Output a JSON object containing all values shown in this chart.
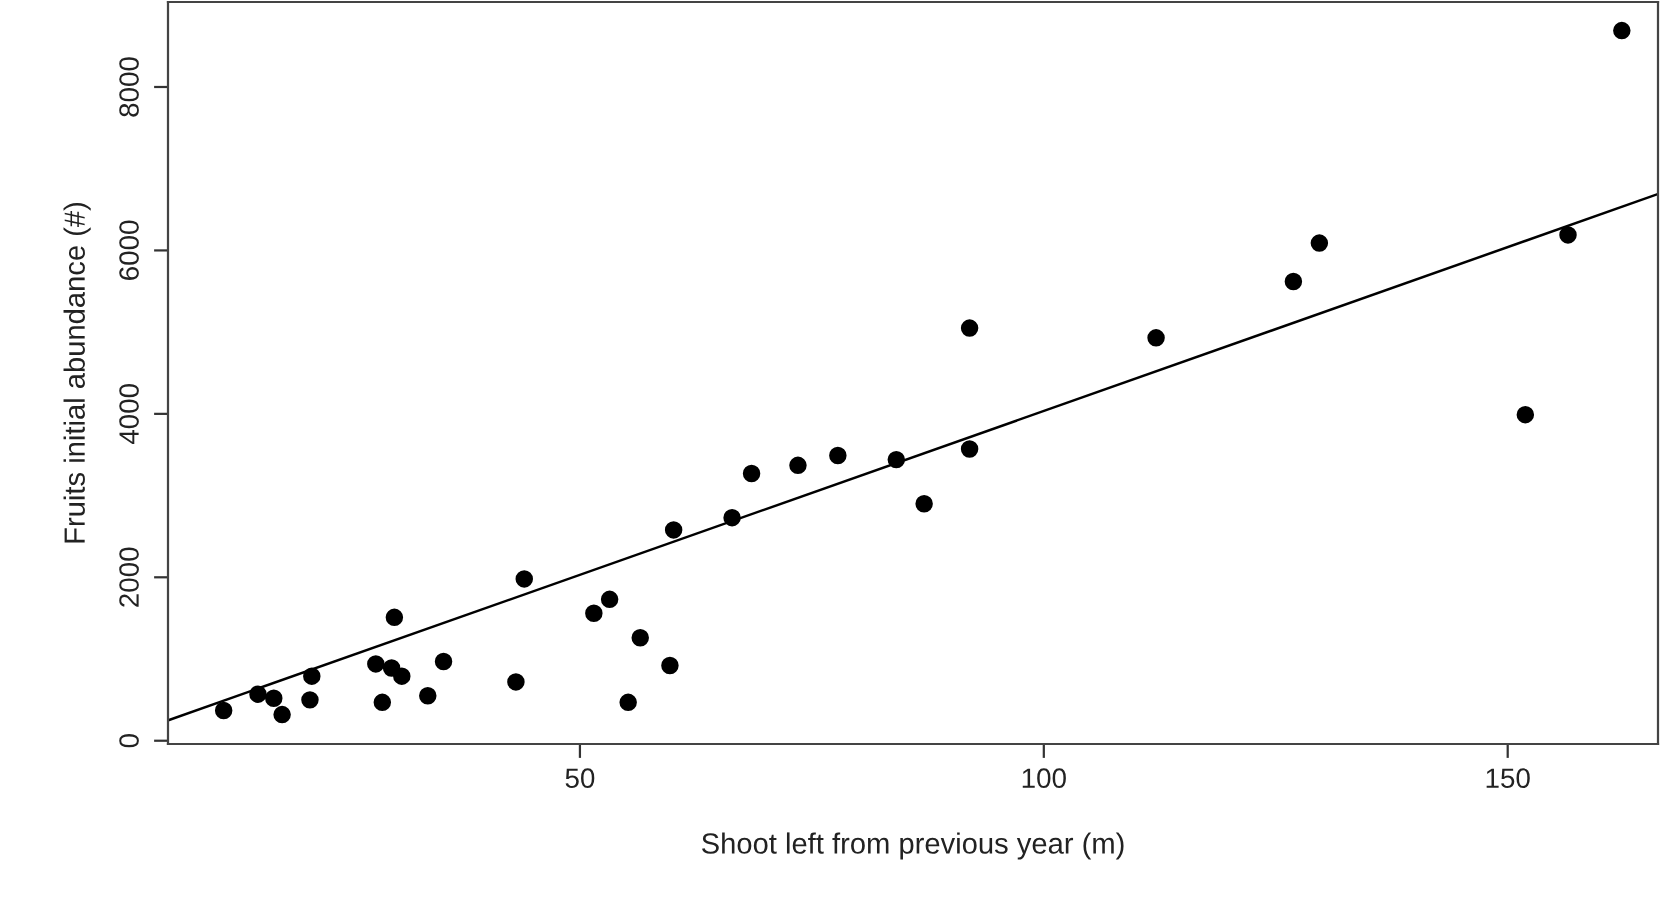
{
  "chart_data": {
    "type": "scatter",
    "xlabel": "Shoot left from previous year (m)",
    "ylabel": "Fruits initial abundance (#)",
    "xlim": [
      5.6,
      166.2
    ],
    "ylim": [
      -40,
      9040
    ],
    "xticks": [
      50,
      100,
      150
    ],
    "yticks": [
      0,
      2000,
      4000,
      6000,
      8000
    ],
    "grid": false,
    "marker": "circle",
    "series": [
      {
        "color": "#000000",
        "x": [
          11.6,
          15.3,
          17.0,
          17.9,
          20.9,
          21.1,
          28.0,
          28.7,
          29.7,
          30.0,
          30.8,
          33.6,
          35.3,
          43.1,
          44.0,
          51.5,
          53.2,
          55.2,
          56.5,
          59.7,
          60.1,
          66.4,
          68.5,
          73.5,
          77.8,
          84.1,
          87.1,
          92.0,
          92.0,
          112.1,
          126.9,
          129.7,
          151.9,
          156.5,
          162.3
        ],
        "values": [
          370,
          570,
          520,
          320,
          500,
          790,
          940,
          470,
          890,
          1510,
          790,
          550,
          970,
          720,
          1980,
          1560,
          1730,
          470,
          1260,
          920,
          2580,
          2730,
          3270,
          3370,
          3490,
          3440,
          2900,
          3570,
          5050,
          4930,
          5620,
          6090,
          3990,
          6190,
          8690
        ]
      },
      {
        "type": "line",
        "color": "#000000",
        "marker": "none",
        "line_style": "solid",
        "x": [
          5.6,
          166.2
        ],
        "values": [
          250,
          6690
        ]
      }
    ]
  }
}
